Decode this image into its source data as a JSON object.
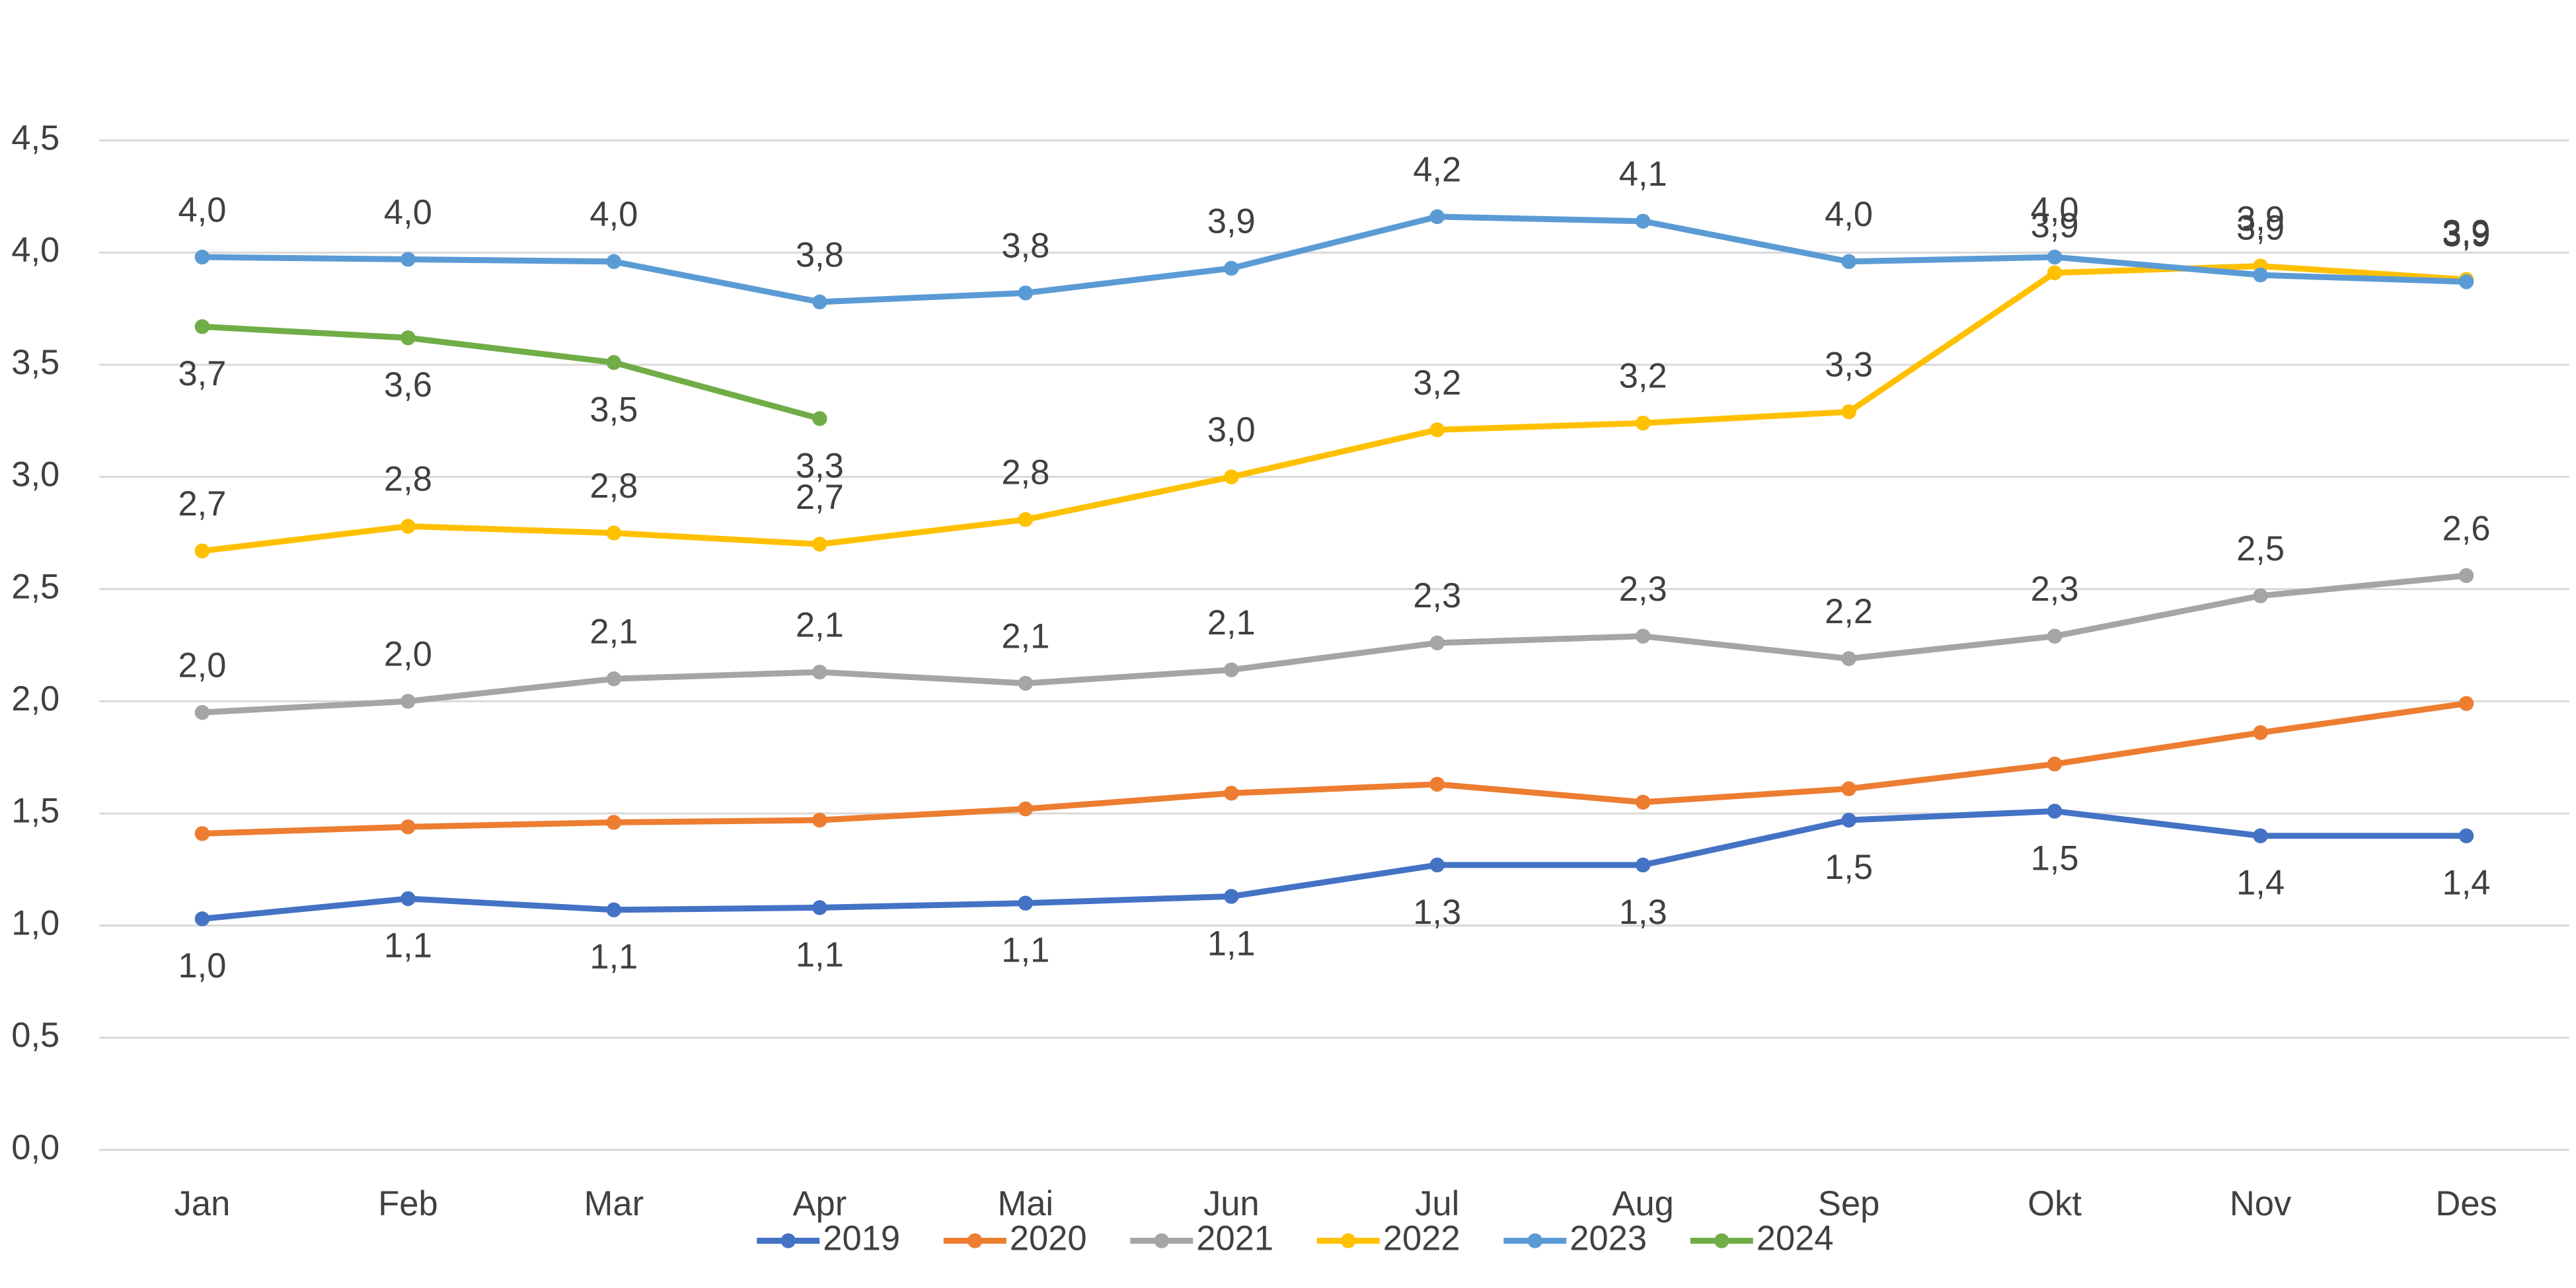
{
  "chart_data": {
    "type": "line",
    "categories": [
      "Jan",
      "Feb",
      "Mar",
      "Apr",
      "Mai",
      "Jun",
      "Jul",
      "Aug",
      "Sep",
      "Okt",
      "Nov",
      "Des"
    ],
    "ylim": [
      0,
      4.5
    ],
    "yticks": [
      {
        "value": 0,
        "label": "0,0"
      },
      {
        "value": 0.5,
        "label": "0,5"
      },
      {
        "value": 1,
        "label": "1,0"
      },
      {
        "value": 1.5,
        "label": "1,5"
      },
      {
        "value": 2,
        "label": "2,0"
      },
      {
        "value": 2.5,
        "label": "2,5"
      },
      {
        "value": 3,
        "label": "3,0"
      },
      {
        "value": 3.5,
        "label": "3,5"
      },
      {
        "value": 4,
        "label": "4,0"
      },
      {
        "value": 4.5,
        "label": "4,5"
      }
    ],
    "grid": true,
    "legend": "bottom",
    "series": [
      {
        "name": "2019",
        "color": "#4472c4",
        "values": [
          1.03,
          1.12,
          1.07,
          1.08,
          1.1,
          1.13,
          1.27,
          1.27,
          1.47,
          1.51,
          1.4,
          1.4
        ],
        "value_labels": [
          "1,0",
          "1,1",
          "1,1",
          "1,1",
          "1,1",
          "1,1",
          "1,3",
          "1,3",
          "1,5",
          "1,5",
          "1,4",
          "1,4"
        ]
      },
      {
        "name": "2020",
        "color": "#ed7d31",
        "values": [
          1.41,
          1.44,
          1.46,
          1.47,
          1.52,
          1.59,
          1.63,
          1.55,
          1.61,
          1.72,
          1.86,
          1.99
        ]
      },
      {
        "name": "2021",
        "color": "#a5a5a5",
        "values": [
          1.95,
          2.0,
          2.1,
          2.13,
          2.08,
          2.14,
          2.26,
          2.29,
          2.19,
          2.29,
          2.47,
          2.56
        ],
        "value_labels": [
          "2,0",
          "2,0",
          "2,1",
          "2,1",
          "2,1",
          "2,1",
          "2,3",
          "2,3",
          "2,2",
          "2,3",
          "2,5",
          "2,6"
        ]
      },
      {
        "name": "2022",
        "color": "#ffc000",
        "values": [
          2.67,
          2.78,
          2.75,
          2.7,
          2.81,
          3.0,
          3.21,
          3.24,
          3.29,
          3.91,
          3.94,
          3.88
        ],
        "value_labels": [
          "2,7",
          "2,8",
          "2,8",
          "2,7",
          "2,8",
          "3,0",
          "3,2",
          "3,2",
          "3,3",
          "3,9",
          "3,9",
          "3,9"
        ]
      },
      {
        "name": "2023",
        "color": "#5b9bd5",
        "values": [
          3.98,
          3.97,
          3.96,
          3.78,
          3.82,
          3.93,
          4.16,
          4.14,
          3.96,
          3.98,
          3.9,
          3.87
        ],
        "value_labels": [
          "4,0",
          "4,0",
          "4,0",
          "3,8",
          "3,8",
          "3,9",
          "4,2",
          "4,1",
          "4,0",
          "4,0",
          "3,9",
          "3,9"
        ]
      },
      {
        "name": "2024",
        "color": "#70ad47",
        "values": [
          3.67,
          3.62,
          3.51,
          3.26,
          null,
          null,
          null,
          null,
          null,
          null,
          null,
          null
        ],
        "value_labels": [
          "3,7",
          "3,6",
          "3,5",
          "3,3",
          null,
          null,
          null,
          null,
          null,
          null,
          null,
          null
        ]
      }
    ]
  }
}
